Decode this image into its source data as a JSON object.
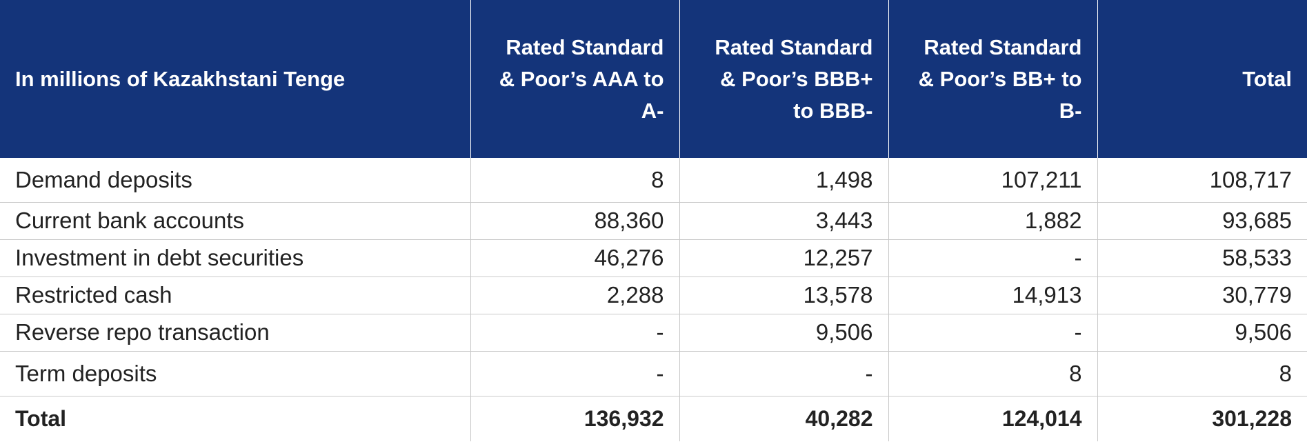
{
  "table": {
    "headers": [
      "In millions of Kazakhstani Tenge",
      "Rated Standard & Poor’s AAA to A-",
      "Rated Standard & Poor’s BBB+ to BBB-",
      "Rated Standard & Poor’s BB+ to B-",
      "Total"
    ],
    "rows": [
      [
        "Demand deposits",
        "8",
        "1,498",
        "107,211",
        "108,717"
      ],
      [
        "Current bank accounts",
        "88,360",
        "3,443",
        "1,882",
        "93,685"
      ],
      [
        "Investment in debt securities",
        "46,276",
        "12,257",
        "-",
        "58,533"
      ],
      [
        "Restricted cash",
        "2,288",
        "13,578",
        "14,913",
        "30,779"
      ],
      [
        "Reverse repo transaction",
        "-",
        "9,506",
        "-",
        "9,506"
      ],
      [
        "Term deposits",
        "-",
        "-",
        "8",
        "8"
      ]
    ],
    "total": [
      "Total",
      "136,932",
      "40,282",
      "124,014",
      "301,228"
    ]
  },
  "colors": {
    "header_background": "#14347a",
    "header_text": "#ffffff",
    "body_text": "#222222",
    "grid_line": "#c9c9c9"
  }
}
